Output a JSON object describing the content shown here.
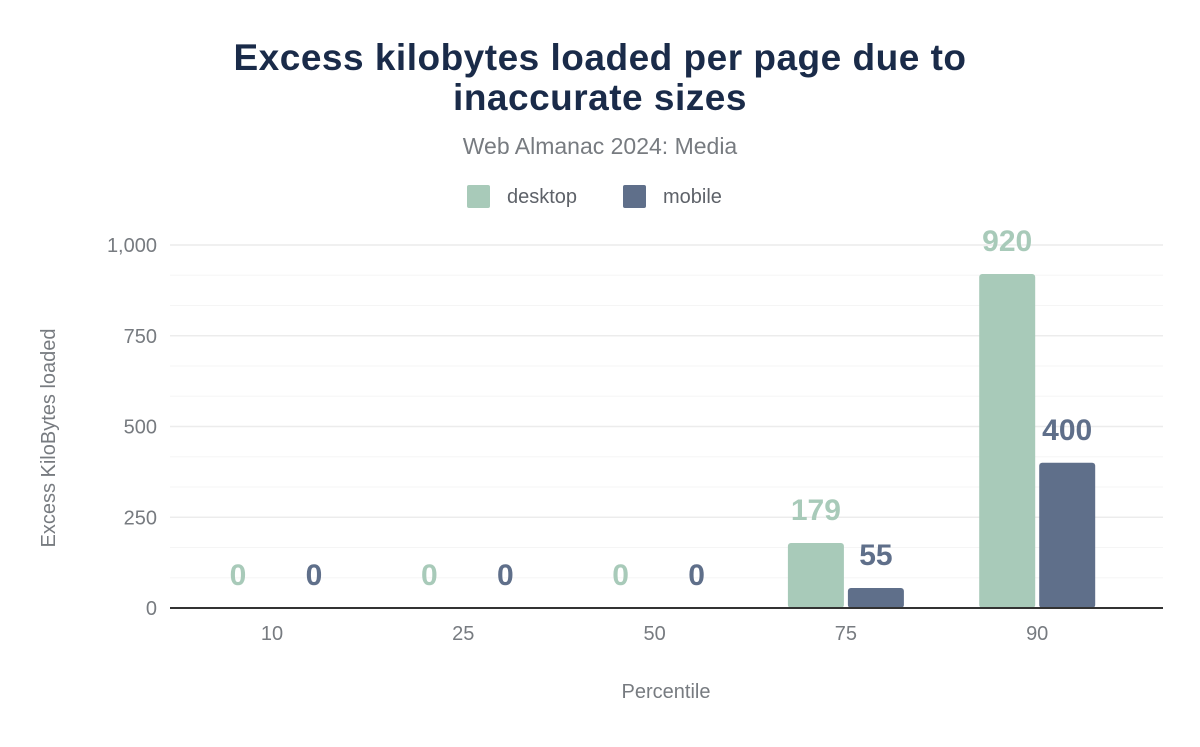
{
  "chart_data": {
    "type": "bar",
    "title_line1": "Excess kilobytes loaded per page due to",
    "title_line2": "inaccurate sizes",
    "subtitle": "Web Almanac 2024: Media",
    "xlabel": "Percentile",
    "ylabel": "Excess KiloBytes loaded",
    "categories": [
      "10",
      "25",
      "50",
      "75",
      "90"
    ],
    "series": [
      {
        "name": "desktop",
        "color": "#a8cab9",
        "values": [
          0,
          0,
          0,
          179,
          920
        ],
        "labels": [
          "0",
          "0",
          "0",
          "179",
          "920"
        ]
      },
      {
        "name": "mobile",
        "color": "#5f6f8a",
        "values": [
          0,
          0,
          0,
          55,
          400
        ],
        "labels": [
          "0",
          "0",
          "0",
          "55",
          "400"
        ]
      }
    ],
    "ylim": [
      0,
      1000
    ],
    "yticks": [
      0,
      250,
      500,
      750,
      1000
    ],
    "ytick_labels": [
      "0",
      "250",
      "500",
      "750",
      "1,000"
    ],
    "grid": true,
    "legend_placement": "top-center",
    "title_color": "#1a2b49"
  }
}
